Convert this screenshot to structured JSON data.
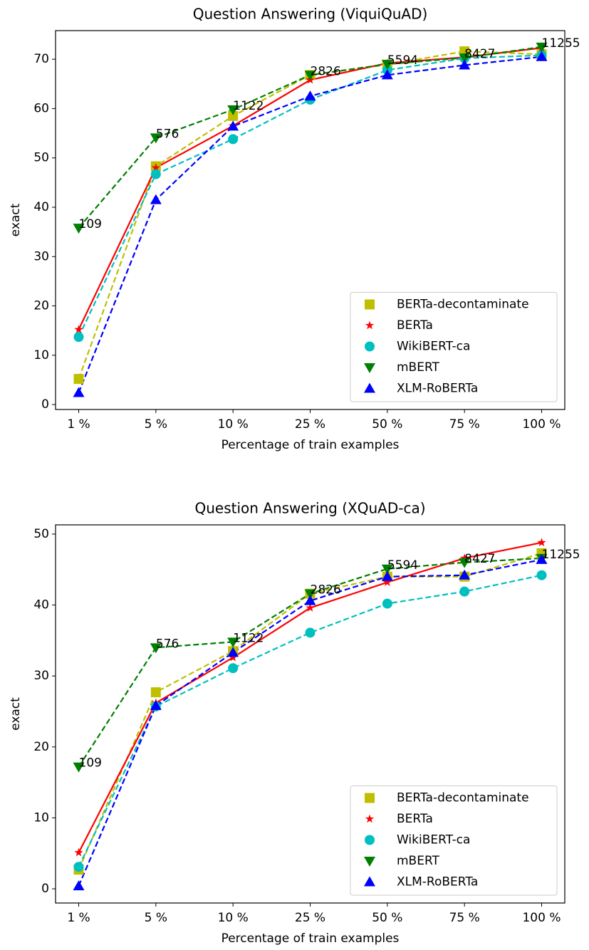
{
  "chart_data": [
    {
      "type": "line",
      "title": "Question Answering (ViquiQuAD)",
      "x_label": "Percentage of train examples",
      "y_label": "exact",
      "categories": [
        "1 %",
        "5 %",
        "10 %",
        "25 %",
        "50 %",
        "75 %",
        "100 %"
      ],
      "series": [
        {
          "name": "BERTa-decontaminate",
          "color": "#bfbf00",
          "marker": "square",
          "linestyle": "dashed",
          "values": [
            5.2,
            48.3,
            58.5,
            66.8,
            68.9,
            71.6,
            71.0
          ]
        },
        {
          "name": "BERTa",
          "color": "#ff0000",
          "marker": "star",
          "linestyle": "solid",
          "values": [
            15.2,
            48.0,
            56.5,
            65.8,
            69.2,
            70.4,
            72.3
          ]
        },
        {
          "name": "WikiBERT-ca",
          "color": "#00bfbf",
          "marker": "circle",
          "linestyle": "dashed",
          "values": [
            13.7,
            46.7,
            53.8,
            61.8,
            67.8,
            70.2,
            70.8
          ]
        },
        {
          "name": "mBERT",
          "color": "#008000",
          "marker": "triangle-down",
          "linestyle": "dashed",
          "values": [
            35.8,
            54.1,
            59.8,
            66.8,
            69.0,
            70.3,
            72.5
          ]
        },
        {
          "name": "XLM-RoBERTa",
          "color": "#0000ff",
          "marker": "triangle-up",
          "linestyle": "dashed",
          "values": [
            2.4,
            41.5,
            56.4,
            62.5,
            66.8,
            68.8,
            70.5
          ]
        }
      ],
      "annotations": [
        "109",
        "576",
        "1122",
        "2826",
        "5594",
        "8427",
        "11255"
      ],
      "ylim": [
        -1.0,
        75.8
      ],
      "yticks": [
        0,
        10,
        20,
        30,
        40,
        50,
        60,
        70
      ],
      "legend": "lower right"
    },
    {
      "type": "line",
      "title": "Question Answering (XQuAD-ca)",
      "x_label": "Percentage of train examples",
      "y_label": "exact",
      "categories": [
        "1 %",
        "5 %",
        "10 %",
        "25 %",
        "50 %",
        "75 %",
        "100 %"
      ],
      "series": [
        {
          "name": "BERTa-decontaminate",
          "color": "#bfbf00",
          "marker": "square",
          "linestyle": "dashed",
          "values": [
            2.7,
            27.7,
            33.5,
            41.6,
            44.0,
            44.0,
            47.3
          ]
        },
        {
          "name": "BERTa",
          "color": "#ff0000",
          "marker": "star",
          "linestyle": "solid",
          "values": [
            5.1,
            26.2,
            32.6,
            39.6,
            43.2,
            46.6,
            48.8
          ]
        },
        {
          "name": "WikiBERT-ca",
          "color": "#00bfbf",
          "marker": "circle",
          "linestyle": "dashed",
          "values": [
            3.1,
            25.7,
            31.1,
            36.1,
            40.2,
            41.9,
            44.2
          ]
        },
        {
          "name": "mBERT",
          "color": "#008000",
          "marker": "triangle-down",
          "linestyle": "dashed",
          "values": [
            17.2,
            34.0,
            34.8,
            41.6,
            45.1,
            46.0,
            46.6
          ]
        },
        {
          "name": "XLM-RoBERTa",
          "color": "#0000ff",
          "marker": "triangle-up",
          "linestyle": "dashed",
          "values": [
            0.4,
            25.8,
            33.3,
            40.6,
            44.0,
            44.2,
            46.4
          ]
        }
      ],
      "annotations": [
        "109",
        "576",
        "1122",
        "2826",
        "5594",
        "8427",
        "11255"
      ],
      "ylim": [
        -2.0,
        51.3
      ],
      "yticks": [
        0,
        10,
        20,
        30,
        40,
        50
      ],
      "legend": "lower right"
    }
  ]
}
